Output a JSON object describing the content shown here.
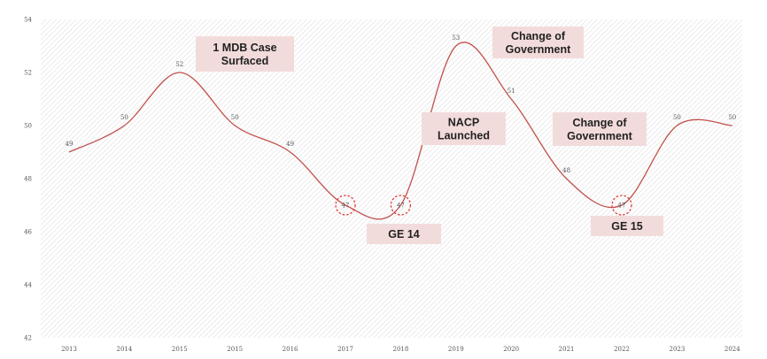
{
  "chart_data": {
    "type": "line",
    "title": "",
    "xlabel": "",
    "ylabel": "",
    "categories": [
      "2013",
      "2014",
      "2015",
      "2015",
      "2016",
      "2017",
      "2018",
      "2019",
      "2020",
      "2021",
      "2022",
      "2023",
      "2024"
    ],
    "series": [
      {
        "values": [
          49,
          50,
          52,
          50,
          49,
          47,
          47,
          53,
          51,
          48,
          47,
          50,
          50
        ],
        "color": "#c0504d"
      }
    ],
    "ylim": [
      42,
      54
    ],
    "yticks": [
      42,
      44,
      46,
      48,
      50,
      52,
      54
    ],
    "grid": false,
    "background_pattern": "diagonal-hatch",
    "highlighted_points": [
      5,
      6,
      10
    ],
    "annotations": [
      {
        "lines": [
          "1 MDB Case",
          "Surfaced"
        ]
      },
      {
        "lines": [
          "Change of",
          "Government"
        ]
      },
      {
        "lines": [
          "NACP",
          "Launched"
        ]
      },
      {
        "lines": [
          "Change of",
          "Government"
        ]
      },
      {
        "lines": [
          "GE 14"
        ]
      },
      {
        "lines": [
          "GE 15"
        ]
      }
    ]
  }
}
